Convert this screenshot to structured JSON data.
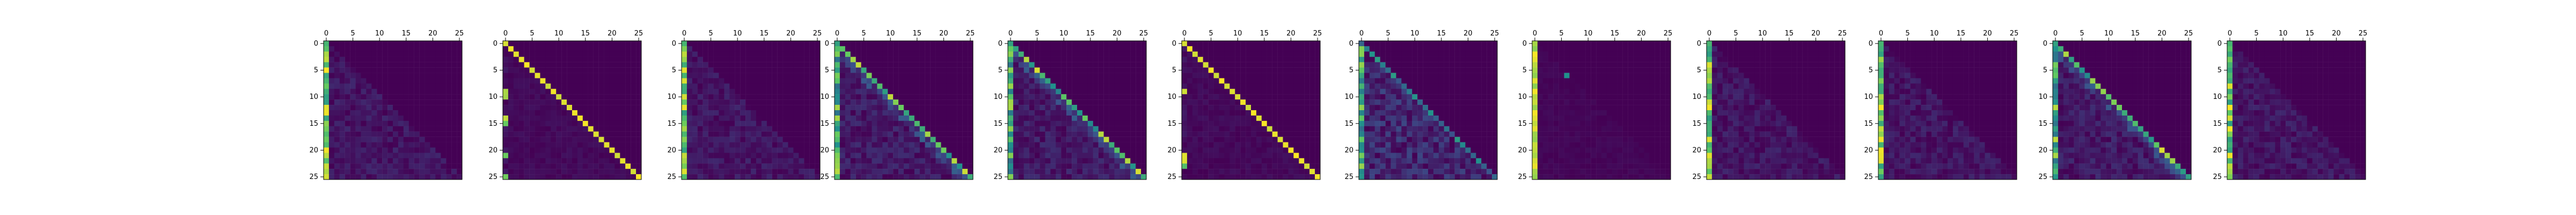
{
  "chart_data": [
    {
      "type": "heatmap",
      "matrix_size": 26,
      "pattern": "first_column_dominant",
      "xticks": [
        0,
        5,
        10,
        15,
        20,
        25
      ],
      "yticks": [
        0,
        5,
        10,
        15,
        20,
        25
      ],
      "xaxis_position": "top",
      "grid": false,
      "seed": 1
    },
    {
      "type": "heatmap",
      "matrix_size": 26,
      "pattern": "diagonal",
      "xticks": [
        0,
        5,
        10,
        15,
        20,
        25
      ],
      "yticks": [
        0,
        5,
        10,
        15,
        20,
        25
      ],
      "xaxis_position": "top",
      "grid": false,
      "seed": 2
    },
    {
      "type": "heatmap",
      "matrix_size": 26,
      "pattern": "first_column_dominant",
      "xticks": [
        0,
        5,
        10,
        15,
        20,
        25
      ],
      "yticks": [
        0,
        5,
        10,
        15,
        20,
        25
      ],
      "xaxis_position": "top",
      "grid": false,
      "seed": 3
    },
    {
      "type": "heatmap",
      "matrix_size": 26,
      "pattern": "diagonal_soft",
      "xticks": [
        0,
        5,
        10,
        15,
        20,
        25
      ],
      "yticks": [
        0,
        5,
        10,
        15,
        20,
        25
      ],
      "xaxis_position": "top",
      "grid": false,
      "seed": 4
    },
    {
      "type": "heatmap",
      "matrix_size": 26,
      "pattern": "diagonal_soft",
      "xticks": [
        0,
        5,
        10,
        15,
        20,
        25
      ],
      "yticks": [
        0,
        5,
        10,
        15,
        20,
        25
      ],
      "xaxis_position": "top",
      "grid": false,
      "seed": 5
    },
    {
      "type": "heatmap",
      "matrix_size": 26,
      "pattern": "diagonal",
      "xticks": [
        0,
        5,
        10,
        15,
        20,
        25
      ],
      "yticks": [
        0,
        5,
        10,
        15,
        20,
        25
      ],
      "xaxis_position": "top",
      "grid": false,
      "seed": 6
    },
    {
      "type": "heatmap",
      "matrix_size": 26,
      "pattern": "lower_triangle",
      "xticks": [
        0,
        5,
        10,
        15,
        20,
        25
      ],
      "yticks": [
        0,
        5,
        10,
        15,
        20,
        25
      ],
      "xaxis_position": "top",
      "grid": false,
      "seed": 7
    },
    {
      "type": "heatmap",
      "matrix_size": 26,
      "pattern": "first_column_sparse",
      "xticks": [
        0,
        5,
        10,
        15,
        20,
        25
      ],
      "yticks": [
        0,
        5,
        10,
        15,
        20,
        25
      ],
      "xaxis_position": "top",
      "grid": false,
      "seed": 8
    },
    {
      "type": "heatmap",
      "matrix_size": 26,
      "pattern": "first_column_dominant",
      "xticks": [
        0,
        5,
        10,
        15,
        20,
        25
      ],
      "yticks": [
        0,
        5,
        10,
        15,
        20,
        25
      ],
      "xaxis_position": "top",
      "grid": false,
      "seed": 9
    },
    {
      "type": "heatmap",
      "matrix_size": 26,
      "pattern": "first_column_dominant",
      "xticks": [
        0,
        5,
        10,
        15,
        20,
        25
      ],
      "yticks": [
        0,
        5,
        10,
        15,
        20,
        25
      ],
      "xaxis_position": "top",
      "grid": false,
      "seed": 10
    },
    {
      "type": "heatmap",
      "matrix_size": 26,
      "pattern": "diagonal_soft",
      "xticks": [
        0,
        5,
        10,
        15,
        20,
        25
      ],
      "yticks": [
        0,
        5,
        10,
        15,
        20,
        25
      ],
      "xaxis_position": "top",
      "grid": false,
      "seed": 11
    },
    {
      "type": "heatmap",
      "matrix_size": 26,
      "pattern": "first_column_dominant",
      "xticks": [
        0,
        5,
        10,
        15,
        20,
        25
      ],
      "yticks": [
        0,
        5,
        10,
        15,
        20,
        25
      ],
      "xaxis_position": "top",
      "grid": false,
      "seed": 12
    }
  ],
  "colors": {
    "low": "#440154",
    "mid": "#21918c",
    "high": "#fde725"
  }
}
